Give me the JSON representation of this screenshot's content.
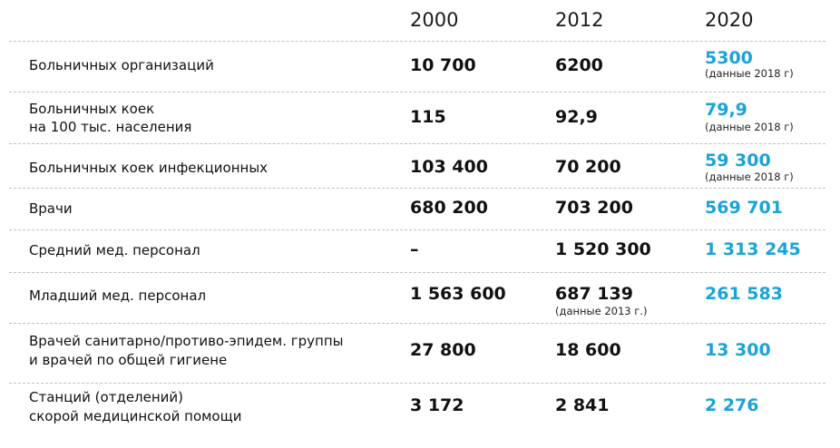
{
  "header": {
    "col1": "2000",
    "col2": "2012",
    "col3": "2020"
  },
  "rows": [
    {
      "label_lines": [
        "Больничных организаций"
      ],
      "v2000": "10 700",
      "v2012": "6200",
      "v2020": "5300",
      "note2020": "(данные 2018 г)"
    },
    {
      "label_lines": [
        "Больничных коек",
        "на 100 тыс. населения"
      ],
      "v2000": "115",
      "v2012": "92,9",
      "v2020": "79,9",
      "note2020": "(данные 2018 г)"
    },
    {
      "label_lines": [
        "Больничных коек инфекционных"
      ],
      "v2000": "103 400",
      "v2012": "70 200",
      "v2020": "59 300",
      "note2020": "(данные 2018 г)"
    },
    {
      "label_lines": [
        "Врачи"
      ],
      "v2000": "680 200",
      "v2012": "703 200",
      "v2020": "569 701"
    },
    {
      "label_lines": [
        "Средний мед. персонал"
      ],
      "v2000": "–",
      "v2012": "1 520 300",
      "v2020": "1 313 245"
    },
    {
      "label_lines": [
        "Младший мед. персонал"
      ],
      "v2000": "1 563 600",
      "v2012": "687 139",
      "note2012": "(данные 2013 г.)",
      "v2020": "261 583"
    },
    {
      "label_lines": [
        "Врачей санитарно/противо-эпидем. группы",
        "и врачей по общей гигиене"
      ],
      "v2000": "27 800",
      "v2012": "18 600",
      "v2020": "13 300"
    },
    {
      "label_lines": [
        "Станций (отделений)",
        "скорой медицинской помощи"
      ],
      "v2000": "3 172",
      "v2012": "2 841",
      "v2020": "2 276"
    }
  ]
}
